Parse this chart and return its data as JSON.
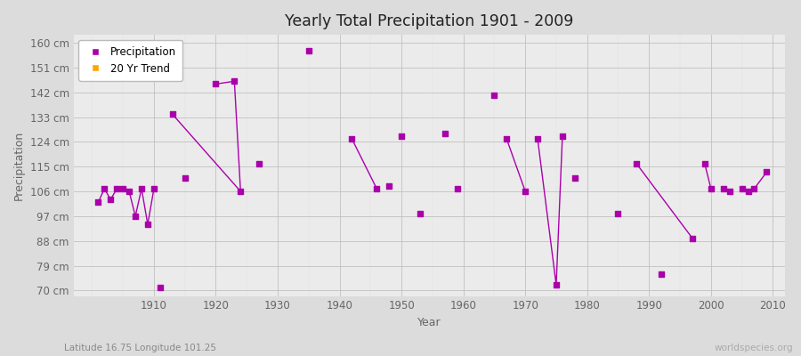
{
  "title": "Yearly Total Precipitation 1901 - 2009",
  "xlabel": "Year",
  "ylabel": "Precipitation",
  "subtitle": "Latitude 16.75 Longitude 101.25",
  "watermark": "worldspecies.org",
  "bg_color": "#dcdcdc",
  "plot_bg_color": "#ebebeb",
  "line_color": "#aa00aa",
  "trend_color": "#FFA500",
  "ylim": [
    68,
    163
  ],
  "yticks": [
    70,
    79,
    88,
    97,
    106,
    115,
    124,
    133,
    142,
    151,
    160
  ],
  "xlim": [
    1897,
    2012
  ],
  "xticks": [
    1910,
    1920,
    1930,
    1940,
    1950,
    1960,
    1970,
    1980,
    1990,
    2000,
    2010
  ],
  "precip_data": [
    [
      1901,
      102
    ],
    [
      1902,
      107
    ],
    [
      1903,
      103
    ],
    [
      1904,
      107
    ],
    [
      1905,
      107
    ],
    [
      1906,
      106
    ],
    [
      1907,
      97
    ],
    [
      1908,
      107
    ],
    [
      1909,
      94
    ],
    [
      1910,
      107
    ],
    [
      1911,
      71
    ],
    [
      1913,
      134
    ],
    [
      1915,
      111
    ],
    [
      1920,
      145
    ],
    [
      1923,
      146
    ],
    [
      1924,
      106
    ],
    [
      1927,
      116
    ],
    [
      1935,
      157
    ],
    [
      1942,
      125
    ],
    [
      1946,
      107
    ],
    [
      1948,
      108
    ],
    [
      1950,
      126
    ],
    [
      1953,
      98
    ],
    [
      1957,
      127
    ],
    [
      1959,
      107
    ],
    [
      1965,
      141
    ],
    [
      1967,
      125
    ],
    [
      1970,
      106
    ],
    [
      1972,
      125
    ],
    [
      1975,
      72
    ],
    [
      1976,
      126
    ],
    [
      1978,
      111
    ],
    [
      1985,
      98
    ],
    [
      1988,
      116
    ],
    [
      1992,
      76
    ],
    [
      1997,
      89
    ],
    [
      1999,
      116
    ],
    [
      2000,
      107
    ],
    [
      2002,
      107
    ],
    [
      2003,
      106
    ],
    [
      2005,
      107
    ],
    [
      2006,
      106
    ],
    [
      2007,
      107
    ],
    [
      2009,
      113
    ]
  ],
  "line_segments": [
    [
      [
        1901,
        102
      ],
      [
        1902,
        107
      ],
      [
        1903,
        103
      ],
      [
        1904,
        107
      ],
      [
        1905,
        107
      ],
      [
        1906,
        106
      ],
      [
        1907,
        97
      ],
      [
        1908,
        107
      ],
      [
        1909,
        94
      ],
      [
        1910,
        107
      ]
    ],
    [
      [
        1913,
        134
      ],
      [
        1924,
        106
      ]
    ],
    [
      [
        1920,
        145
      ],
      [
        1923,
        146
      ],
      [
        1924,
        106
      ]
    ],
    [
      [
        1942,
        125
      ],
      [
        1946,
        107
      ]
    ],
    [
      [
        1967,
        125
      ],
      [
        1970,
        106
      ]
    ],
    [
      [
        1972,
        125
      ],
      [
        1975,
        72
      ],
      [
        1976,
        126
      ]
    ],
    [
      [
        1988,
        116
      ],
      [
        1997,
        89
      ]
    ],
    [
      [
        1999,
        116
      ],
      [
        2000,
        107
      ]
    ],
    [
      [
        2002,
        107
      ],
      [
        2003,
        106
      ]
    ],
    [
      [
        2005,
        107
      ],
      [
        2006,
        106
      ],
      [
        2007,
        107
      ]
    ],
    [
      [
        2007,
        107
      ],
      [
        2009,
        113
      ]
    ]
  ]
}
